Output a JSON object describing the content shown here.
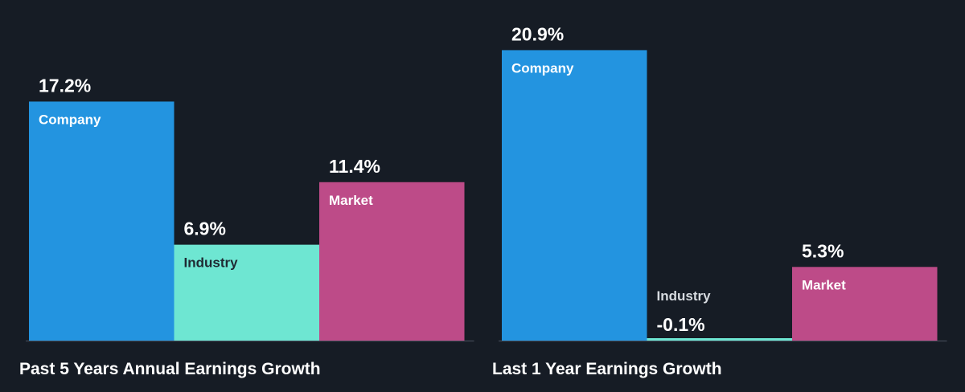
{
  "chart_data": [
    {
      "type": "bar",
      "title": "Past 5 Years Annual Earnings Growth",
      "categories": [
        "Company",
        "Industry",
        "Market"
      ],
      "values": [
        17.2,
        6.9,
        11.4
      ],
      "value_labels": [
        "17.2%",
        "6.9%",
        "11.4%"
      ],
      "unit": "%",
      "colors": [
        "#2394e0",
        "#6ee6d2",
        "#bd4b88"
      ],
      "grid": false,
      "legend": "none"
    },
    {
      "type": "bar",
      "title": "Last 1 Year Earnings Growth",
      "categories": [
        "Company",
        "Industry",
        "Market"
      ],
      "values": [
        20.9,
        -0.1,
        5.3
      ],
      "value_labels": [
        "20.9%",
        "-0.1%",
        "5.3%"
      ],
      "unit": "%",
      "colors": [
        "#2394e0",
        "#6ee6d2",
        "#bd4b88"
      ],
      "negative_label_color": "#e84a4a",
      "grid": false,
      "legend": "none"
    }
  ],
  "colors": {
    "background": "#161c25",
    "baseline": "#4a5260",
    "text": "#ffffff",
    "label_on_light": "#1f2a33",
    "label_above_dark": "#d7dbe0"
  }
}
